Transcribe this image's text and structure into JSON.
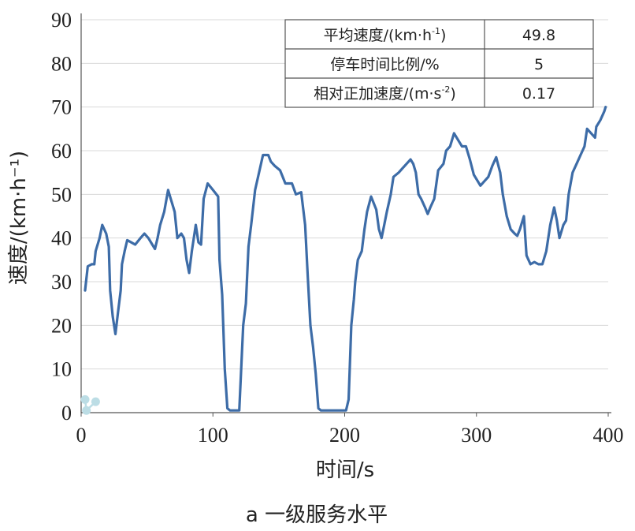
{
  "chart_data": {
    "type": "line",
    "xlabel": "时间/s",
    "ylabel": "速度/(km·h⁻¹)",
    "xlim": [
      0,
      400
    ],
    "ylim": [
      0,
      90
    ],
    "x_ticks": [
      "0",
      "100",
      "200",
      "300",
      "400"
    ],
    "y_ticks": [
      "0",
      "10",
      "20",
      "30",
      "40",
      "50",
      "60",
      "70",
      "80",
      "90"
    ],
    "grid": "horizontal",
    "caption": "a 一级服务水平",
    "line_color": "#3d6ca7",
    "marker_color": "#bcdde5",
    "series": [
      {
        "points": [
          [
            3,
            28
          ],
          [
            5,
            33.5
          ],
          [
            8,
            34
          ],
          [
            10,
            34
          ],
          [
            11,
            37
          ],
          [
            14,
            40
          ],
          [
            16,
            43
          ],
          [
            19,
            41
          ],
          [
            21,
            38
          ],
          [
            22,
            28
          ],
          [
            24,
            22
          ],
          [
            26,
            18
          ],
          [
            28,
            23
          ],
          [
            30,
            28
          ],
          [
            31,
            34
          ],
          [
            33,
            37
          ],
          [
            35,
            39.5
          ],
          [
            38,
            39
          ],
          [
            41,
            38.5
          ],
          [
            45,
            40
          ],
          [
            48,
            41
          ],
          [
            51,
            40
          ],
          [
            54,
            38.5
          ],
          [
            56,
            37.5
          ],
          [
            58,
            40
          ],
          [
            60,
            43
          ],
          [
            63,
            46
          ],
          [
            66,
            51
          ],
          [
            68,
            49
          ],
          [
            71,
            46
          ],
          [
            73,
            40
          ],
          [
            76,
            41
          ],
          [
            78,
            40
          ],
          [
            80,
            35
          ],
          [
            82,
            32
          ],
          [
            84,
            37
          ],
          [
            87,
            43
          ],
          [
            89,
            39
          ],
          [
            91,
            38.5
          ],
          [
            93,
            49
          ],
          [
            96,
            52.5
          ],
          [
            100,
            51
          ],
          [
            104,
            49.5
          ],
          [
            105,
            35
          ],
          [
            107,
            27
          ],
          [
            109,
            10
          ],
          [
            111,
            1
          ],
          [
            113,
            0.5
          ],
          [
            116,
            0.5
          ],
          [
            120,
            0.5
          ],
          [
            123,
            20
          ],
          [
            125,
            25
          ],
          [
            127,
            38
          ],
          [
            129,
            43
          ],
          [
            132,
            51
          ],
          [
            135,
            55
          ],
          [
            138,
            59
          ],
          [
            142,
            59
          ],
          [
            144,
            57.5
          ],
          [
            147,
            56.5
          ],
          [
            151,
            55.5
          ],
          [
            155,
            52.5
          ],
          [
            160,
            52.5
          ],
          [
            163,
            50
          ],
          [
            167,
            50.5
          ],
          [
            170,
            43
          ],
          [
            172,
            31
          ],
          [
            174,
            20
          ],
          [
            176,
            15
          ],
          [
            178,
            9
          ],
          [
            180,
            1
          ],
          [
            182,
            0.5
          ],
          [
            188,
            0.5
          ],
          [
            195,
            0.5
          ],
          [
            201,
            0.5
          ],
          [
            203,
            3
          ],
          [
            205,
            20
          ],
          [
            207,
            26
          ],
          [
            208,
            30
          ],
          [
            210,
            35
          ],
          [
            213,
            37
          ],
          [
            215,
            42
          ],
          [
            217,
            46
          ],
          [
            220,
            49.5
          ],
          [
            224,
            46.5
          ],
          [
            226,
            42
          ],
          [
            228,
            40
          ],
          [
            230,
            43
          ],
          [
            232,
            46
          ],
          [
            235,
            50
          ],
          [
            237,
            54
          ],
          [
            241,
            55
          ],
          [
            244,
            56
          ],
          [
            247,
            57
          ],
          [
            250,
            58
          ],
          [
            252,
            57
          ],
          [
            254,
            55
          ],
          [
            256,
            50
          ],
          [
            258,
            49
          ],
          [
            261,
            47
          ],
          [
            263,
            45.5
          ],
          [
            265,
            47
          ],
          [
            268,
            49
          ],
          [
            271,
            55.5
          ],
          [
            275,
            57
          ],
          [
            277,
            60
          ],
          [
            280,
            61
          ],
          [
            283,
            64
          ],
          [
            286,
            62.5
          ],
          [
            289,
            61
          ],
          [
            292,
            61
          ],
          [
            295,
            58
          ],
          [
            298,
            54.5
          ],
          [
            301,
            53
          ],
          [
            303,
            52
          ],
          [
            306,
            53
          ],
          [
            309,
            54
          ],
          [
            312,
            56.5
          ],
          [
            315,
            58.5
          ],
          [
            318,
            55
          ],
          [
            320,
            50
          ],
          [
            323,
            45
          ],
          [
            326,
            42
          ],
          [
            329,
            41
          ],
          [
            331,
            40.5
          ],
          [
            333,
            42
          ],
          [
            336,
            45
          ],
          [
            338,
            36
          ],
          [
            341,
            34
          ],
          [
            344,
            34.5
          ],
          [
            347,
            34
          ],
          [
            350,
            34
          ],
          [
            353,
            37
          ],
          [
            356,
            43
          ],
          [
            359,
            47
          ],
          [
            361,
            44
          ],
          [
            363,
            40
          ],
          [
            366,
            43
          ],
          [
            368,
            44
          ],
          [
            370,
            50
          ],
          [
            373,
            55
          ],
          [
            376,
            57
          ],
          [
            379,
            59
          ],
          [
            382,
            61
          ],
          [
            384,
            65
          ],
          [
            387,
            64
          ],
          [
            390,
            63
          ],
          [
            391,
            65.5
          ],
          [
            394,
            67
          ],
          [
            397,
            69
          ],
          [
            398,
            70
          ]
        ]
      }
    ],
    "markers": [
      [
        3,
        3
      ],
      [
        4,
        0.5
      ],
      [
        11,
        2.5
      ]
    ],
    "table": {
      "rows": [
        {
          "label": "平均速度/(km·h",
          "sup": "-1",
          "suffix": ")",
          "value": "49.8"
        },
        {
          "label": "停车时间比例/%",
          "sup": "",
          "suffix": "",
          "value": "5"
        },
        {
          "label": "相对正加速度/(m·s",
          "sup": "-2",
          "suffix": ")",
          "value": "0.17"
        }
      ]
    }
  }
}
